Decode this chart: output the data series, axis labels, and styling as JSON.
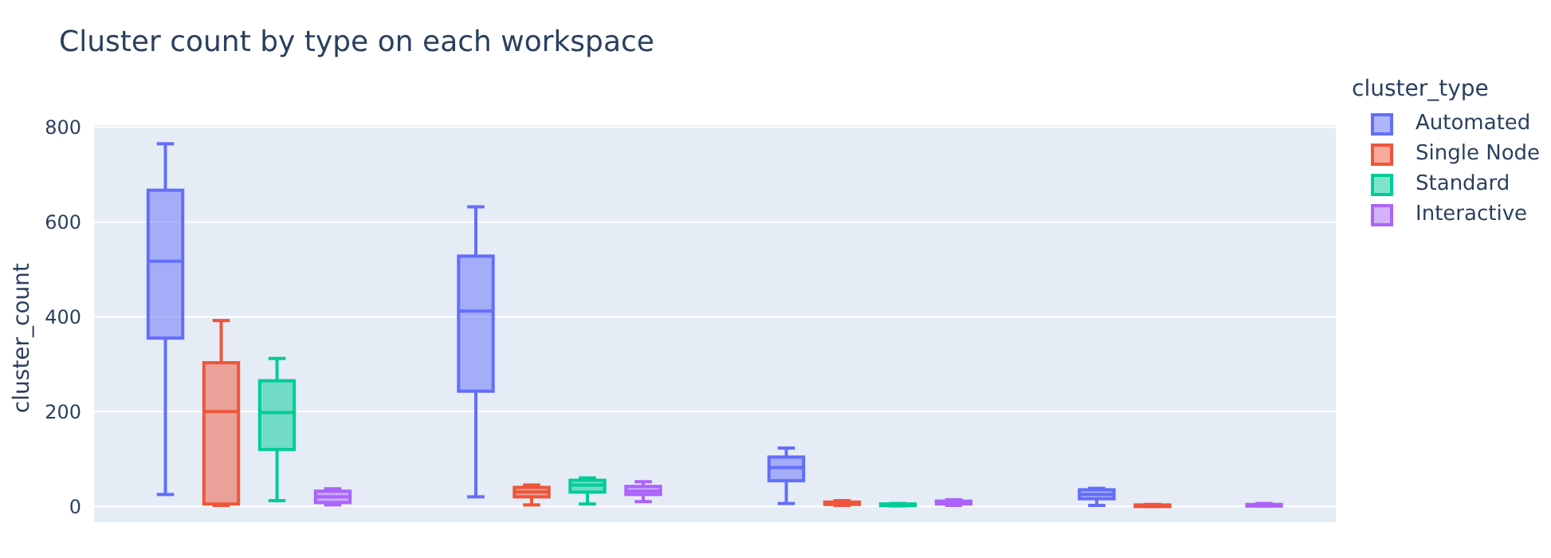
{
  "chart_data": {
    "type": "box",
    "title": "Cluster count by type on each workspace",
    "ylabel": "cluster_count",
    "legend_title": "cluster_type",
    "categories": [
      null,
      null,
      null,
      null
    ],
    "series": [
      {
        "name": "Automated",
        "color": "#636efa",
        "boxes": [
          {
            "low": 25,
            "q1": 355,
            "median": 517,
            "q3": 667,
            "high": 765
          },
          {
            "low": 20,
            "q1": 243,
            "median": 412,
            "q3": 528,
            "high": 632
          },
          {
            "low": 6,
            "q1": 54,
            "median": 82,
            "q3": 104,
            "high": 123
          },
          {
            "low": 2,
            "q1": 16,
            "median": 25,
            "q3": 35,
            "high": 38
          }
        ]
      },
      {
        "name": "Single Node",
        "color": "#ef553b",
        "boxes": [
          {
            "low": 2,
            "q1": 5,
            "median": 200,
            "q3": 303,
            "high": 392
          },
          {
            "low": 3,
            "q1": 20,
            "median": 30,
            "q3": 40,
            "high": 45
          },
          {
            "low": 2,
            "q1": 4,
            "median": 6,
            "q3": 9,
            "high": 12
          },
          {
            "low": 0,
            "q1": 1,
            "median": 2,
            "q3": 3,
            "high": 4
          }
        ]
      },
      {
        "name": "Standard",
        "color": "#00cc96",
        "boxes": [
          {
            "low": 12,
            "q1": 120,
            "median": 198,
            "q3": 265,
            "high": 312
          },
          {
            "low": 5,
            "q1": 30,
            "median": 45,
            "q3": 55,
            "high": 60
          },
          {
            "low": 1,
            "q1": 3,
            "median": 4,
            "q3": 5,
            "high": 6
          },
          null
        ]
      },
      {
        "name": "Interactive",
        "color": "#ab63fa",
        "boxes": [
          {
            "low": 3,
            "q1": 8,
            "median": 20,
            "q3": 32,
            "high": 37
          },
          {
            "low": 10,
            "q1": 25,
            "median": 32,
            "q3": 42,
            "high": 52
          },
          {
            "low": 2,
            "q1": 5,
            "median": 8,
            "q3": 11,
            "high": 14
          },
          {
            "low": 1,
            "q1": 2,
            "median": 3,
            "q3": 4,
            "high": 6
          }
        ]
      }
    ],
    "ylim": [
      -35,
      806
    ],
    "yticks": [
      0,
      200,
      400,
      600,
      800
    ],
    "grid": "y",
    "legend": "top right",
    "tick_labels": "y"
  }
}
